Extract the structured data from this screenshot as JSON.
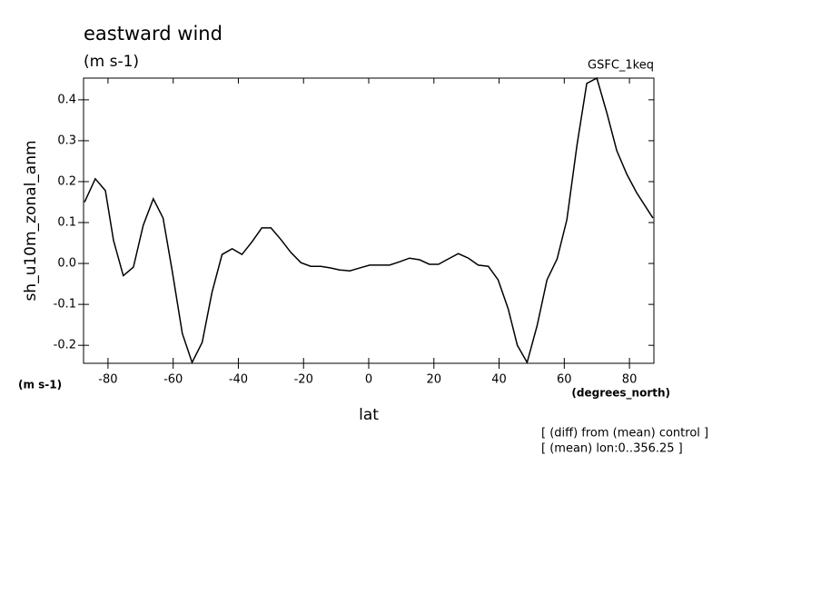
{
  "chart_data": {
    "type": "line",
    "title": "eastward wind",
    "subtitle": "(m s-1)",
    "dataset": "GSFC_1keq",
    "y_label": "sh_u10m_zonal_anm",
    "y_units": "(m s-1)",
    "x_units": "(degrees_north)",
    "x_label": "lat",
    "notes": [
      "[ (diff) from (mean) control ]",
      "[ (mean) lon:0..356.25 ]"
    ],
    "x": [
      -87.2,
      -83.9,
      -80.8,
      -78.3,
      -75.3,
      -72.2,
      -69.2,
      -66.1,
      -63.1,
      -60.3,
      -57.2,
      -54.2,
      -51.1,
      -48.1,
      -45,
      -41.9,
      -38.9,
      -35.8,
      -32.8,
      -30,
      -26.9,
      -23.9,
      -20.8,
      -17.8,
      -14.7,
      -11.7,
      -8.9,
      -5.8,
      -2.8,
      0.3,
      3.3,
      6.4,
      9.4,
      12.5,
      15.6,
      18.6,
      21.4,
      24.4,
      27.5,
      30.6,
      33.6,
      36.7,
      39.7,
      42.8,
      45.6,
      48.6,
      51.7,
      54.7,
      57.8,
      60.8,
      63.9,
      66.9,
      70,
      73.1,
      76.1,
      79.2,
      82.2,
      87.2
    ],
    "series": [
      {
        "name": "sh_u10m_zonal_anm",
        "color": "#000000",
        "values": [
          0.15,
          0.207,
          0.178,
          0.056,
          -0.03,
          -0.009,
          0.093,
          0.158,
          0.111,
          -0.018,
          -0.171,
          -0.242,
          -0.193,
          -0.071,
          0.022,
          0.036,
          0.022,
          0.053,
          0.087,
          0.087,
          0.058,
          0.027,
          0.002,
          -0.007,
          -0.007,
          -0.011,
          -0.016,
          -0.018,
          -0.011,
          -0.004,
          -0.004,
          -0.004,
          0.004,
          0.013,
          0.009,
          -0.002,
          -0.002,
          0.011,
          0.024,
          0.013,
          -0.004,
          -0.007,
          -0.04,
          -0.111,
          -0.2,
          -0.242,
          -0.151,
          -0.04,
          0.011,
          0.107,
          0.289,
          0.44,
          0.453,
          0.367,
          0.276,
          0.218,
          0.173,
          0.111
        ]
      }
    ],
    "xlim": [
      -87.5,
      87.5
    ],
    "ylim": [
      -0.244,
      0.453
    ],
    "xticks": [
      -80,
      -60,
      -40,
      -20,
      0,
      20,
      40,
      60,
      80
    ],
    "yticks": [
      -0.2,
      -0.1,
      {
        "value": 0,
        "label": "0.0"
      },
      0.1,
      0.2,
      0.3,
      0.4
    ],
    "grid": false
  }
}
